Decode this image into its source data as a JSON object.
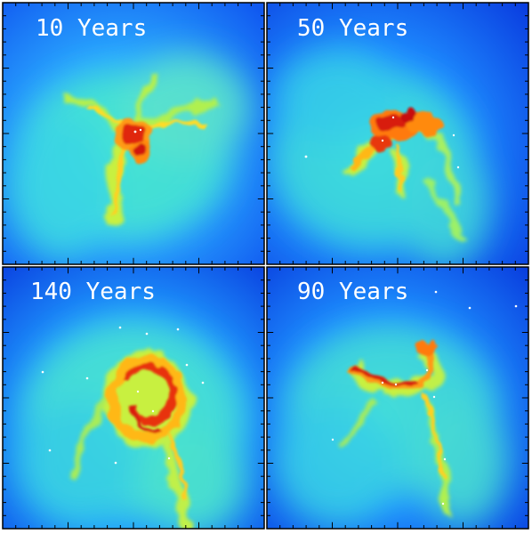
{
  "panels": [
    {
      "label": "10 Years"
    },
    {
      "label": "50 Years"
    },
    {
      "label": "140 Years"
    },
    {
      "label": "90 Years"
    }
  ],
  "colors": {
    "background_low": "#0a3de0",
    "background_mid": "#2aa8ff",
    "gas_medium": "#40e8c8",
    "gas_high": "#ffe020",
    "gas_dense": "#ff8a10",
    "gas_core": "#d01008",
    "star": "#ffffff",
    "frame": "#000000"
  }
}
